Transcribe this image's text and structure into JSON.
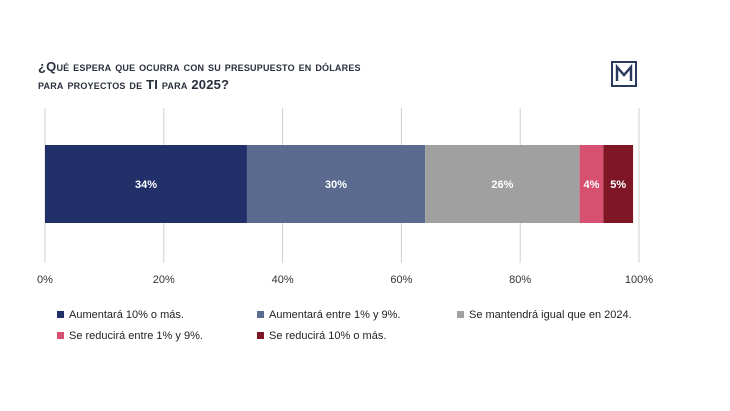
{
  "title": {
    "line1": "¿Qué espera que ocurra con su presupuesto en dólares",
    "line2": "para proyectos de TI para 2025?"
  },
  "logo": {
    "icon": "m-logo-icon",
    "color": "#2a3a5e"
  },
  "chart_data": {
    "type": "bar",
    "orientation": "horizontal-stacked-100",
    "x_ticks": [
      "0%",
      "20%",
      "40%",
      "60%",
      "80%",
      "100%"
    ],
    "xlim": [
      0,
      100
    ],
    "grid": true,
    "legend_position": "bottom",
    "series": [
      {
        "name": "Aumentará 10% o más.",
        "value": 34,
        "label": "34%",
        "color": "#22306a"
      },
      {
        "name": "Aumentará entre 1% y 9%.",
        "value": 30,
        "label": "30%",
        "color": "#5b6b90"
      },
      {
        "name": "Se mantendrá igual que en 2024.",
        "value": 26,
        "label": "26%",
        "color": "#a0a0a0"
      },
      {
        "name": "Se reducirá entre 1% y 9%.",
        "value": 4,
        "label": "4%",
        "color": "#d6506f"
      },
      {
        "name": "Se reducirá 10% o más.",
        "value": 5,
        "label": "5%",
        "color": "#7e1626"
      }
    ]
  }
}
